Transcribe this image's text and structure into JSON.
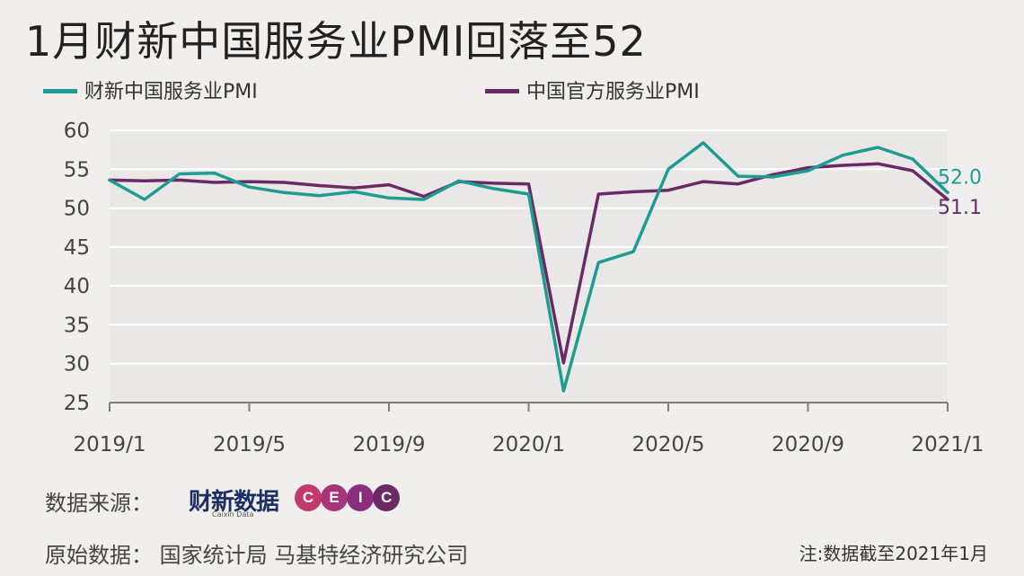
{
  "header": {
    "title": "1月财新中国服务业PMI回落至52"
  },
  "legend": {
    "series1_label": "财新中国服务业PMI",
    "series2_label": "中国官方服务业PMI"
  },
  "colors": {
    "caixin": "#1f9c92",
    "official": "#6b2a66",
    "grid": "#ffffff",
    "background": "#f0efee"
  },
  "chart_data": {
    "type": "line",
    "title": "1月财新中国服务业PMI回落至52",
    "ylim": [
      25,
      60
    ],
    "yticks": [
      25,
      30,
      35,
      40,
      45,
      50,
      55,
      60
    ],
    "xtick_labels": [
      "2019/1",
      "2019/5",
      "2019/9",
      "2020/1",
      "2020/5",
      "2020/9",
      "2021/1"
    ],
    "x": [
      "2019/1",
      "2019/2",
      "2019/3",
      "2019/4",
      "2019/5",
      "2019/6",
      "2019/7",
      "2019/8",
      "2019/9",
      "2019/10",
      "2019/11",
      "2019/12",
      "2020/1",
      "2020/2",
      "2020/3",
      "2020/4",
      "2020/5",
      "2020/6",
      "2020/7",
      "2020/8",
      "2020/9",
      "2020/10",
      "2020/11",
      "2020/12",
      "2021/1"
    ],
    "grid": true,
    "legend_position": "top",
    "series": [
      {
        "name": "财新中国服务业PMI",
        "color": "#1f9c92",
        "values": [
          53.6,
          51.1,
          54.4,
          54.5,
          52.7,
          52.0,
          51.6,
          52.1,
          51.3,
          51.1,
          53.5,
          52.5,
          51.8,
          26.5,
          43.0,
          44.4,
          55.0,
          58.4,
          54.1,
          54.0,
          54.8,
          56.8,
          57.8,
          56.3,
          52.0
        ],
        "end_label": "52.0"
      },
      {
        "name": "中国官方服务业PMI",
        "color": "#6b2a66",
        "values": [
          53.6,
          53.5,
          53.6,
          53.3,
          53.4,
          53.3,
          52.9,
          52.6,
          53.0,
          51.5,
          53.4,
          53.2,
          53.1,
          30.1,
          51.8,
          52.1,
          52.3,
          53.4,
          53.1,
          54.3,
          55.2,
          55.5,
          55.7,
          54.8,
          51.1
        ],
        "end_label": "51.1"
      }
    ]
  },
  "footer": {
    "source_label": "数据来源：",
    "caixin_logo_text": "财新数据",
    "caixin_logo_sub": "Caixin Data",
    "ceic_letters": [
      "C",
      "E",
      "I",
      "C"
    ],
    "original_label": "原始数据：",
    "original_sources": "国家统计局  马基特经济研究公司",
    "note": "注:数据截至2021年1月"
  }
}
